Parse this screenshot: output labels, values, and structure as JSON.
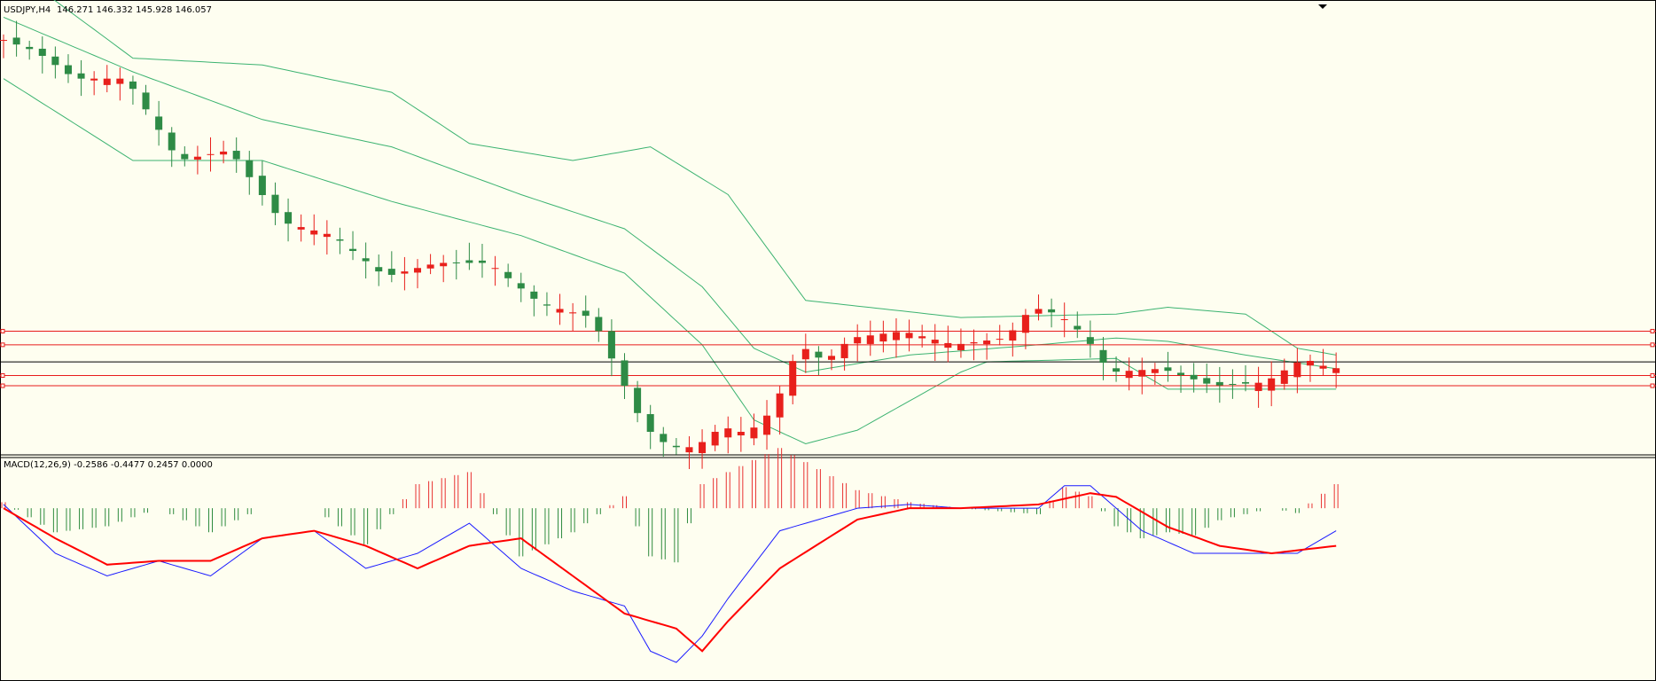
{
  "header": {
    "symbol_label": "USDJPY,H4",
    "ohlc_label": "146.271 146.332 145.928 146.057"
  },
  "macd": {
    "label": "MACD(12,26,9) -0.2586 -0.4477 0.2457 0.0000"
  },
  "colors": {
    "background": "#fefef0",
    "bull_candle": "#e8201c",
    "bear_candle": "#2e8b46",
    "bands": "#3cb371",
    "horizontal_line": "#e81c1c",
    "black_line": "#000000",
    "macd_main": "#1a1aff",
    "macd_signal": "#ff0000",
    "hist_up": "#e83030",
    "hist_down": "#2e8b3e"
  },
  "chart_data": [
    {
      "type": "candlestick",
      "symbol": "USDJPY",
      "timeframe": "H4",
      "last_bar": {
        "open": 146.271,
        "high": 146.332,
        "low": 145.928,
        "close": 146.057
      },
      "price_path": [
        [
          0,
          150.9
        ],
        [
          3,
          150.7
        ],
        [
          6,
          150.3
        ],
        [
          10,
          150.3
        ],
        [
          14,
          149.1
        ],
        [
          18,
          149.25
        ],
        [
          22,
          148.2
        ],
        [
          26,
          148.0
        ],
        [
          30,
          147.4
        ],
        [
          34,
          147.6
        ],
        [
          38,
          147.6
        ],
        [
          42,
          147.0
        ],
        [
          46,
          146.8
        ],
        [
          48,
          146.0
        ],
        [
          50,
          145.2
        ],
        [
          52,
          144.9
        ],
        [
          54,
          144.9
        ],
        [
          56,
          145.2
        ],
        [
          58,
          145.1
        ],
        [
          60,
          145.45
        ],
        [
          62,
          146.4
        ],
        [
          64,
          146.15
        ],
        [
          66,
          146.5
        ],
        [
          70,
          146.6
        ],
        [
          74,
          146.4
        ],
        [
          78,
          146.5
        ],
        [
          80,
          146.95
        ],
        [
          82,
          146.85
        ],
        [
          84,
          146.55
        ],
        [
          86,
          146.0
        ],
        [
          90,
          146.05
        ],
        [
          94,
          145.8
        ],
        [
          98,
          145.85
        ],
        [
          101,
          146.2
        ],
        [
          103,
          146.057
        ]
      ],
      "bollinger_bands": {
        "upper": [
          [
            0,
            152.0
          ],
          [
            10,
            150.6
          ],
          [
            20,
            150.5
          ],
          [
            30,
            150.1
          ],
          [
            36,
            149.35
          ],
          [
            44,
            149.1
          ],
          [
            50,
            149.3
          ],
          [
            56,
            148.6
          ],
          [
            62,
            147.05
          ],
          [
            74,
            146.8
          ],
          [
            86,
            146.85
          ],
          [
            90,
            146.95
          ],
          [
            96,
            146.85
          ],
          [
            100,
            146.35
          ],
          [
            103,
            146.25
          ]
        ],
        "middle": [
          [
            0,
            151.2
          ],
          [
            10,
            150.4
          ],
          [
            20,
            149.7
          ],
          [
            30,
            149.3
          ],
          [
            40,
            148.6
          ],
          [
            48,
            148.1
          ],
          [
            54,
            147.25
          ],
          [
            58,
            146.35
          ],
          [
            62,
            146.0
          ],
          [
            70,
            146.25
          ],
          [
            80,
            146.4
          ],
          [
            86,
            146.5
          ],
          [
            90,
            146.45
          ],
          [
            96,
            146.25
          ],
          [
            103,
            146.05
          ]
        ],
        "lower": [
          [
            0,
            150.3
          ],
          [
            10,
            149.1
          ],
          [
            20,
            149.1
          ],
          [
            30,
            148.5
          ],
          [
            40,
            148.0
          ],
          [
            48,
            147.45
          ],
          [
            54,
            146.4
          ],
          [
            58,
            145.3
          ],
          [
            62,
            144.95
          ],
          [
            66,
            145.15
          ],
          [
            74,
            146.0
          ],
          [
            76,
            146.15
          ],
          [
            86,
            146.2
          ],
          [
            90,
            145.75
          ],
          [
            96,
            145.75
          ],
          [
            103,
            145.75
          ]
        ]
      },
      "horizontal_levels": [
        {
          "price": 146.6,
          "color": "red"
        },
        {
          "price": 146.4,
          "color": "red"
        },
        {
          "price": 146.15,
          "color": "black"
        },
        {
          "price": 145.95,
          "color": "red"
        },
        {
          "price": 145.8,
          "color": "red"
        }
      ],
      "ylim": [
        144.8,
        151.4
      ],
      "xlim": [
        0,
        128
      ]
    },
    {
      "type": "line",
      "indicator": "MACD",
      "params": [
        12,
        26,
        9
      ],
      "readout": {
        "main": -0.2586,
        "signal": -0.4477,
        "histogram": 0.2457,
        "level": 0.0
      },
      "main_line": [
        [
          0,
          0.05
        ],
        [
          4,
          -0.6
        ],
        [
          8,
          -0.9
        ],
        [
          12,
          -0.7
        ],
        [
          16,
          -0.9
        ],
        [
          20,
          -0.4
        ],
        [
          24,
          -0.3
        ],
        [
          28,
          -0.8
        ],
        [
          32,
          -0.6
        ],
        [
          36,
          -0.2
        ],
        [
          40,
          -0.8
        ],
        [
          44,
          -1.1
        ],
        [
          48,
          -1.3
        ],
        [
          50,
          -1.9
        ],
        [
          52,
          -2.05
        ],
        [
          54,
          -1.7
        ],
        [
          56,
          -1.2
        ],
        [
          60,
          -0.3
        ],
        [
          66,
          0.0
        ],
        [
          70,
          0.05
        ],
        [
          74,
          0.0
        ],
        [
          80,
          0.0
        ],
        [
          82,
          0.3
        ],
        [
          84,
          0.3
        ],
        [
          88,
          -0.3
        ],
        [
          92,
          -0.6
        ],
        [
          96,
          -0.6
        ],
        [
          100,
          -0.6
        ],
        [
          103,
          -0.3
        ]
      ],
      "signal_line": [
        [
          0,
          0.0
        ],
        [
          4,
          -0.4
        ],
        [
          8,
          -0.75
        ],
        [
          12,
          -0.7
        ],
        [
          16,
          -0.7
        ],
        [
          20,
          -0.4
        ],
        [
          24,
          -0.3
        ],
        [
          28,
          -0.5
        ],
        [
          32,
          -0.8
        ],
        [
          36,
          -0.5
        ],
        [
          40,
          -0.4
        ],
        [
          44,
          -0.9
        ],
        [
          48,
          -1.4
        ],
        [
          52,
          -1.6
        ],
        [
          54,
          -1.9
        ],
        [
          56,
          -1.5
        ],
        [
          60,
          -0.8
        ],
        [
          66,
          -0.15
        ],
        [
          70,
          0.0
        ],
        [
          74,
          0.0
        ],
        [
          80,
          0.05
        ],
        [
          84,
          0.2
        ],
        [
          86,
          0.15
        ],
        [
          90,
          -0.25
        ],
        [
          94,
          -0.5
        ],
        [
          98,
          -0.6
        ],
        [
          103,
          -0.5
        ]
      ],
      "ylim": [
        -2.25,
        0.65
      ]
    }
  ]
}
